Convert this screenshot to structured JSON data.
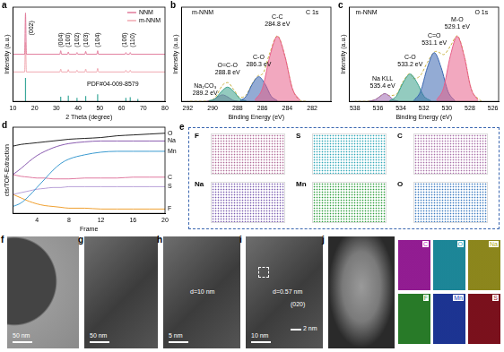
{
  "chart_data": [
    {
      "panel": "a",
      "type": "line",
      "x_label": "2 Theta (degree)",
      "y_label": "Intensity (a.u.)",
      "xlim": [
        10,
        80
      ],
      "xticks": [
        10,
        20,
        30,
        40,
        50,
        60,
        70,
        80
      ],
      "ylim": [
        0,
        160
      ],
      "tick_labels": "x",
      "grid": false,
      "legend": "upper right",
      "series": [
        {
          "name": "NNM",
          "color": "#e07a9a",
          "x": [
            10,
            15.4,
            15.8,
            16.2,
            31.6,
            32,
            32.4,
            35.1,
            35.5,
            35.9,
            39.1,
            39.5,
            39.9,
            43.1,
            43.5,
            43.9,
            48.6,
            49,
            49.4,
            61.6,
            62,
            62.4,
            63.6,
            64,
            64.4,
            80
          ],
          "values": [
            80,
            80,
            150,
            80,
            80,
            86,
            80,
            80,
            84,
            80,
            80,
            83,
            80,
            80,
            85,
            80,
            80,
            86,
            80,
            80,
            83,
            80,
            80,
            83,
            80,
            80
          ]
        },
        {
          "name": "m-NNM",
          "color": "#f0a8b0",
          "x": [
            10,
            15.4,
            15.8,
            16.2,
            31.6,
            32,
            32.4,
            35.1,
            35.5,
            35.9,
            39.1,
            39.5,
            39.9,
            43.1,
            43.5,
            43.9,
            48.6,
            49,
            49.4,
            61.6,
            62,
            62.4,
            63.6,
            64,
            64.4,
            80
          ],
          "values": [
            50,
            50,
            100,
            50,
            50,
            55,
            50,
            50,
            54,
            50,
            50,
            53,
            50,
            50,
            55,
            50,
            50,
            56,
            50,
            50,
            53,
            50,
            50,
            53,
            50,
            50
          ]
        },
        {
          "type": "bar",
          "color": "#3aa89a",
          "x": [
            15.8,
            32,
            35.5,
            39.5,
            43.5,
            49,
            62,
            64,
            67.5
          ],
          "values": [
            40,
            8,
            10,
            6,
            9,
            12,
            6,
            7,
            4
          ]
        }
      ],
      "annotations": [
        {
          "text": "(002)",
          "x": 18.5,
          "y": 112
        },
        {
          "text": "(004)",
          "x": 32,
          "y": 92
        },
        {
          "text": "(100)",
          "x": 35.5,
          "y": 92
        },
        {
          "text": "(102)",
          "x": 39.5,
          "y": 92
        },
        {
          "text": "(103)",
          "x": 43.5,
          "y": 92
        },
        {
          "text": "(104)",
          "x": 49,
          "y": 92
        },
        {
          "text": "(106)",
          "x": 61.5,
          "y": 92
        },
        {
          "text": "(110)",
          "x": 65,
          "y": 92
        },
        {
          "text": "PDF#04-009-8579",
          "x": 56,
          "y": 34
        }
      ]
    },
    {
      "panel": "b",
      "type": "line",
      "x_label": "Binding Energy (eV)",
      "y_label": "Intensity (a.u.)",
      "xlim": [
        292.5,
        280.5
      ],
      "xticks": [
        292,
        290,
        288,
        286,
        284,
        282
      ],
      "ylim": [
        0,
        145
      ],
      "tick_labels": "x",
      "grid": false,
      "series": [
        {
          "type": "area",
          "color": "#e8608a",
          "x": [
            283.0,
            283.6,
            284.2,
            284.8,
            285.4,
            286.0,
            286.6
          ],
          "values": [
            2,
            20,
            70,
            100,
            70,
            20,
            2
          ]
        },
        {
          "type": "area",
          "color": "#3a66b0",
          "x": [
            284.8,
            285.3,
            285.8,
            286.3,
            286.8,
            287.3,
            287.8
          ],
          "values": [
            1,
            8,
            27,
            38,
            27,
            8,
            1
          ]
        },
        {
          "type": "area",
          "color": "#3aa08a",
          "x": [
            287.3,
            287.8,
            288.3,
            288.8,
            289.3,
            289.8,
            290.3
          ],
          "values": [
            1,
            4,
            15,
            22,
            15,
            4,
            1
          ]
        },
        {
          "type": "area",
          "color": "#a06ab0",
          "x": [
            287.9,
            288.4,
            288.8,
            289.2,
            289.6,
            290.0,
            290.5
          ],
          "values": [
            0,
            2,
            7,
            10,
            7,
            2,
            0
          ]
        },
        {
          "type": "line",
          "color": "#c8b040",
          "line_style": "dashed",
          "x": [
            282.5,
            283.0,
            283.6,
            284.2,
            284.8,
            285.4,
            286.0,
            286.3,
            286.8,
            287.3,
            287.8,
            288.3,
            288.8,
            289.2,
            289.8,
            290.3,
            291,
            292
          ],
          "values": [
            0,
            2,
            20,
            70,
            101,
            75,
            42,
            40,
            28,
            10,
            6,
            18,
            29,
            25,
            6,
            1,
            0,
            0
          ]
        }
      ],
      "annotations": [
        {
          "text": "m-NNM",
          "x": 290.8,
          "y": 142
        },
        {
          "text": "C 1s",
          "x": 282,
          "y": 142
        },
        {
          "text": "C-C\n284.8 eV",
          "x": 284.8,
          "y": 135
        },
        {
          "text": "C-O\n286.3 eV",
          "x": 286.3,
          "y": 72
        },
        {
          "text": "O=C-O\n288.8 eV",
          "x": 288.8,
          "y": 60
        },
        {
          "text": "Na₂CO₃\n289.2 eV",
          "x": 290.6,
          "y": 28
        }
      ]
    },
    {
      "panel": "c",
      "type": "line",
      "x_label": "Binding Energy (eV)",
      "y_label": "Intensity (a.u.)",
      "xlim": [
        538.5,
        525.5
      ],
      "xticks": [
        538,
        536,
        534,
        532,
        530,
        528,
        526
      ],
      "ylim": [
        0,
        145
      ],
      "tick_labels": "x",
      "grid": false,
      "series": [
        {
          "type": "area",
          "color": "#e8608a",
          "x": [
            527.3,
            527.9,
            528.5,
            529.1,
            529.7,
            530.3,
            530.9
          ],
          "values": [
            2,
            20,
            70,
            100,
            70,
            20,
            2
          ]
        },
        {
          "type": "area",
          "color": "#3a66b0",
          "x": [
            529.3,
            529.9,
            530.5,
            531.1,
            531.7,
            532.3,
            532.9
          ],
          "values": [
            1,
            15,
            52,
            75,
            52,
            15,
            1
          ]
        },
        {
          "type": "area",
          "color": "#3aa08a",
          "x": [
            531.4,
            532.0,
            532.6,
            533.2,
            533.8,
            534.4,
            535.0
          ],
          "values": [
            1,
            8,
            29,
            42,
            29,
            8,
            1
          ]
        },
        {
          "type": "area",
          "color": "#a06ab0",
          "x": [
            534.2,
            534.7,
            535.0,
            535.4,
            535.8,
            536.2,
            536.8
          ],
          "values": [
            0,
            3,
            8,
            12,
            8,
            3,
            0
          ]
        },
        {
          "type": "line",
          "color": "#c8b040",
          "line_style": "dashed",
          "x": [
            527,
            527.9,
            528.5,
            529.1,
            529.7,
            530.3,
            530.9,
            531.1,
            531.7,
            532.3,
            532.9,
            533.2,
            533.8,
            534.4,
            535.0,
            535.4,
            536.2,
            537,
            538
          ],
          "values": [
            0,
            20,
            71,
            101,
            85,
            72,
            77,
            76,
            60,
            40,
            35,
            43,
            31,
            11,
            9,
            12,
            3,
            0,
            0
          ]
        }
      ],
      "annotations": [
        {
          "text": "m-NNM",
          "x": 537,
          "y": 142
        },
        {
          "text": "O 1s",
          "x": 527,
          "y": 142
        },
        {
          "text": "M-O\n529.1 eV",
          "x": 529.1,
          "y": 130
        },
        {
          "text": "C=O\n531.1 eV",
          "x": 531.1,
          "y": 105
        },
        {
          "text": "C-O\n533.2 eV",
          "x": 533.2,
          "y": 72
        },
        {
          "text": "Na KLL\n535.4 eV",
          "x": 535.6,
          "y": 40
        }
      ]
    },
    {
      "panel": "d",
      "type": "line",
      "x_label": "Frame",
      "y_label": "cts/TOF-Extraction",
      "xlim": [
        1,
        20
      ],
      "xticks": [
        4,
        8,
        12,
        16,
        20
      ],
      "ylim": [
        0,
        100
      ],
      "tick_labels": "x",
      "grid": false,
      "legend": "right",
      "series": [
        {
          "name": "O",
          "color": "#222222",
          "x": [
            1,
            2,
            3,
            4,
            5,
            6,
            7,
            8,
            10,
            12,
            14,
            16,
            18,
            20
          ],
          "values": [
            78,
            80,
            81,
            82,
            83,
            84,
            85,
            86,
            87,
            88,
            90,
            91,
            92,
            93
          ]
        },
        {
          "name": "Na",
          "color": "#8a5cb0",
          "x": [
            1,
            2,
            3,
            4,
            5,
            6,
            7,
            8,
            10,
            12,
            14,
            16,
            18,
            20
          ],
          "values": [
            45,
            52,
            60,
            67,
            72,
            76,
            79,
            81,
            83,
            84,
            84,
            84,
            84,
            84
          ]
        },
        {
          "name": "Mn",
          "color": "#3a9ad0",
          "x": [
            1,
            2,
            3,
            4,
            5,
            6,
            7,
            8,
            10,
            12,
            14,
            16,
            18,
            20
          ],
          "values": [
            8,
            12,
            20,
            30,
            40,
            50,
            58,
            63,
            68,
            71,
            72,
            72,
            72,
            72
          ]
        },
        {
          "name": "C",
          "color": "#e07aa0",
          "x": [
            1,
            2,
            3,
            4,
            5,
            6,
            7,
            8,
            10,
            12,
            14,
            16,
            18,
            20
          ],
          "values": [
            45,
            43,
            42,
            41,
            41,
            40,
            40,
            40,
            41,
            41,
            41,
            42,
            42,
            42
          ]
        },
        {
          "name": "S",
          "color": "#b8a0d8",
          "x": [
            1,
            2,
            3,
            4,
            5,
            6,
            7,
            8,
            10,
            12,
            14,
            16,
            18,
            20
          ],
          "values": [
            22,
            24,
            26,
            28,
            29,
            30,
            30,
            31,
            31,
            31,
            31,
            31,
            31,
            31
          ]
        },
        {
          "name": "F",
          "color": "#f0a030",
          "x": [
            1,
            2,
            3,
            4,
            5,
            6,
            7,
            8,
            10,
            12,
            14,
            16,
            18,
            20
          ],
          "values": [
            22,
            18,
            14,
            11,
            9,
            8,
            7,
            6,
            6,
            5,
            5,
            5,
            5,
            5
          ]
        }
      ]
    }
  ],
  "element_maps": {
    "panel": "e",
    "maps": [
      {
        "label": "F",
        "color": "#b06a98"
      },
      {
        "label": "S",
        "color": "#30a8b8"
      },
      {
        "label": "C",
        "color": "#a870a8"
      },
      {
        "label": "Na",
        "color": "#7a5cb0"
      },
      {
        "label": "Mn",
        "color": "#30a040"
      },
      {
        "label": "O",
        "color": "#3a7ac0"
      }
    ]
  },
  "micrographs": [
    {
      "panel": "f",
      "scale_bar": "50 nm"
    },
    {
      "panel": "g",
      "scale_bar": "50 nm"
    },
    {
      "panel": "h",
      "annotation": "d=10 nm",
      "scale_bar": "5 nm"
    },
    {
      "panel": "i",
      "annotation": "d=0.57 nm",
      "plane": "(020)",
      "inset_scale_bar": "2 nm",
      "scale_bar": "10 nm"
    }
  ],
  "eds_maps": {
    "panel": "j",
    "maps": [
      {
        "label": "C",
        "color": "#c020c0"
      },
      {
        "label": "O",
        "color": "#20b0c8"
      },
      {
        "label": "Na",
        "color": "#b8b020"
      },
      {
        "label": "F",
        "color": "#30a030"
      },
      {
        "label": "Mn",
        "color": "#2040c0"
      },
      {
        "label": "S",
        "color": "#a01020"
      }
    ]
  }
}
